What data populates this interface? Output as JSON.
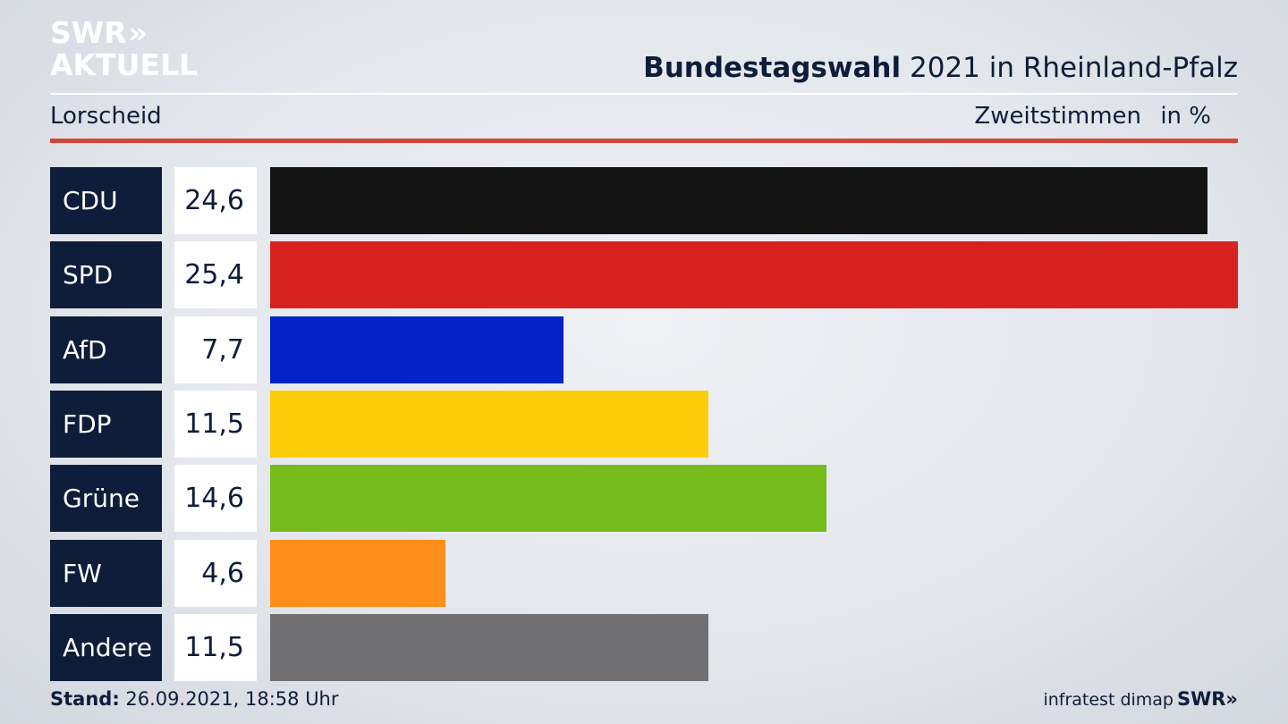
{
  "branding": {
    "logo_line1": "SWR",
    "logo_line2": "AKTUELL",
    "footer_logo": "SWR"
  },
  "header": {
    "title_bold": "Bundestagswahl",
    "title_rest": "2021 in Rheinland-Pfalz",
    "place": "Lorscheid",
    "vote_type": "Zweitstimmen",
    "unit": "in %"
  },
  "footer": {
    "stand_label": "Stand:",
    "stand_value": "26.09.2021, 18:58 Uhr",
    "source": "infratest dimap"
  },
  "chart_data": {
    "type": "bar",
    "orientation": "horizontal",
    "title": "Bundestagswahl 2021 in Rheinland-Pfalz",
    "subtitle": "Lorscheid",
    "categories": [
      "CDU",
      "SPD",
      "AfD",
      "FDP",
      "Grüne",
      "FW",
      "Andere"
    ],
    "values": [
      24.6,
      25.4,
      7.7,
      11.5,
      14.6,
      4.6,
      11.5
    ],
    "value_labels": [
      "24,6",
      "25,4",
      "7,7",
      "11,5",
      "14,6",
      "4,6",
      "11,5"
    ],
    "colors": [
      "#141414",
      "#d8221f",
      "#0123c8",
      "#fecd0a",
      "#76bc1c",
      "#fd8e19",
      "#717174"
    ],
    "ylabel": "Zweitstimmen",
    "unit": "in %",
    "xlim": [
      0,
      25.4
    ],
    "grid": false,
    "legend": "none"
  }
}
